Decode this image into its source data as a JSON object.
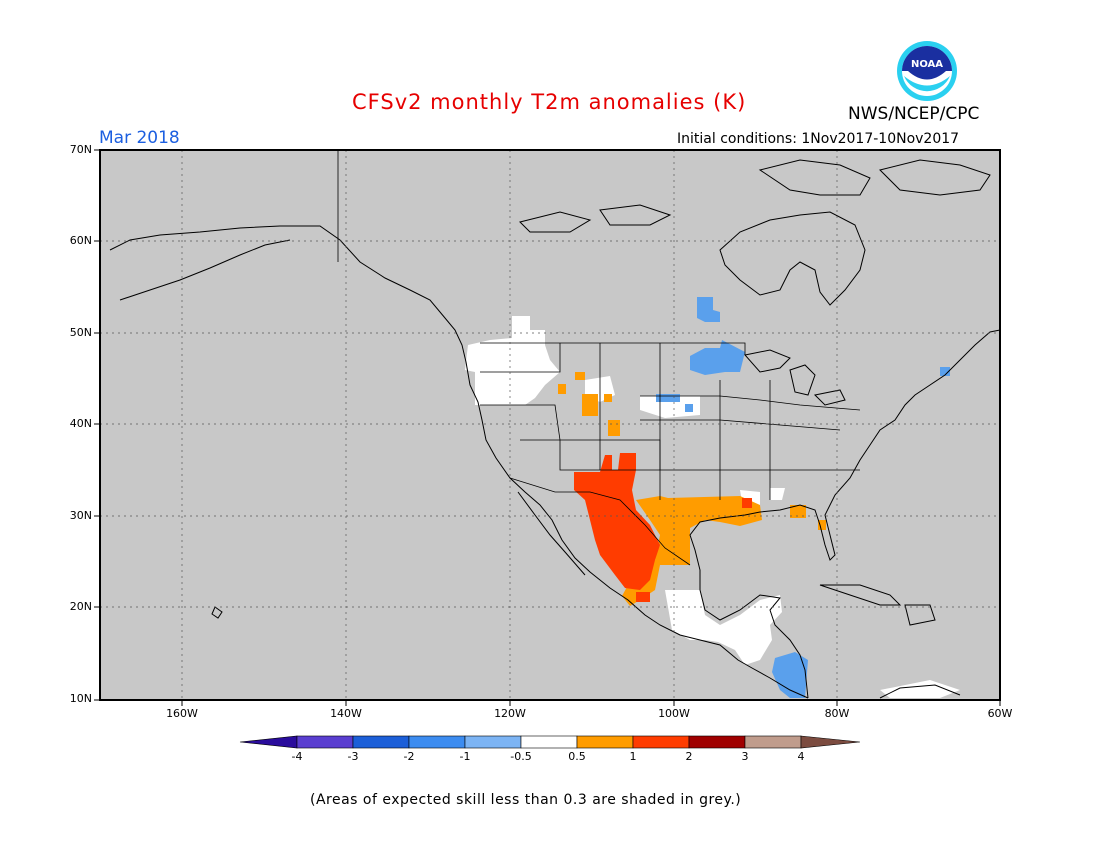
{
  "title": "CFSv2 monthly T2m anomalies (K)",
  "period": "Mar 2018",
  "agency": "NWS/NCEP/CPC",
  "logo_text": "NOAA",
  "initial_conditions": "Initial conditions: 1Nov2017-10Nov2017",
  "footnote": "(Areas of expected skill less than 0.3 are shaded in grey.)",
  "lat_labels": [
    "70N",
    "60N",
    "50N",
    "40N",
    "30N",
    "20N",
    "10N"
  ],
  "lon_labels": [
    "160W",
    "140W",
    "120W",
    "100W",
    "80W",
    "60W"
  ],
  "colorbar": {
    "labels": [
      "-4",
      "-3",
      "-2",
      "-1",
      "-0.5",
      "0.5",
      "1",
      "2",
      "3",
      "4"
    ],
    "colors": [
      "#2a0c9c",
      "#5a3ed0",
      "#1c5fd8",
      "#3c8cf0",
      "#7cb4f4",
      "#ffffff",
      "#ff9c00",
      "#ff3c00",
      "#a00000",
      "#c09c8c",
      "#7c4c40"
    ]
  },
  "colors": {
    "grey_skill": "#c8c8c8",
    "land_lines": "#000000",
    "title": "#e60000",
    "period": "#1c5fe0"
  }
}
